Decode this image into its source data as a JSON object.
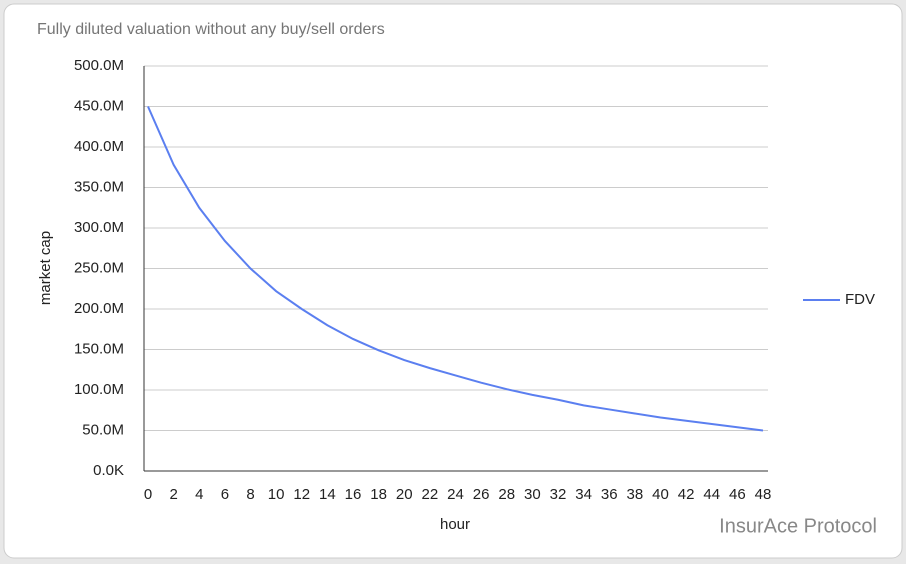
{
  "chart_data": {
    "type": "line",
    "title": "Fully diluted valuation without any buy/sell orders",
    "x_label": "hour",
    "y_label": "market cap",
    "x": [
      0,
      2,
      4,
      6,
      8,
      10,
      12,
      14,
      16,
      18,
      20,
      22,
      24,
      26,
      28,
      30,
      32,
      34,
      36,
      38,
      40,
      42,
      44,
      46,
      48
    ],
    "series": [
      {
        "name": "FDV",
        "color": "#5b7ff0",
        "values": [
          450000000,
          378000000,
          325000000,
          284000000,
          250000000,
          222000000,
          200000000,
          180000000,
          163000000,
          149000000,
          137000000,
          127000000,
          118000000,
          109000000,
          101000000,
          94000000,
          88000000,
          81000000,
          76000000,
          71000000,
          66000000,
          62000000,
          58000000,
          54000000,
          50000000
        ]
      }
    ],
    "xlim": [
      0,
      48
    ],
    "xticks": [
      0,
      2,
      4,
      6,
      8,
      10,
      12,
      14,
      16,
      18,
      20,
      22,
      24,
      26,
      28,
      30,
      32,
      34,
      36,
      38,
      40,
      42,
      44,
      46,
      48
    ],
    "ylim": [
      0,
      500000000
    ],
    "yticks": [
      {
        "value": 0,
        "label": "0.0K"
      },
      {
        "value": 50000000,
        "label": "50.0M"
      },
      {
        "value": 100000000,
        "label": "100.0M"
      },
      {
        "value": 150000000,
        "label": "150.0M"
      },
      {
        "value": 200000000,
        "label": "200.0M"
      },
      {
        "value": 250000000,
        "label": "250.0M"
      },
      {
        "value": 300000000,
        "label": "300.0M"
      },
      {
        "value": 350000000,
        "label": "350.0M"
      },
      {
        "value": 400000000,
        "label": "400.0M"
      },
      {
        "value": 450000000,
        "label": "450.0M"
      },
      {
        "value": 500000000,
        "label": "500.0M"
      }
    ],
    "grid": true,
    "legend": "right",
    "watermark": "InsurAce Protocol"
  }
}
